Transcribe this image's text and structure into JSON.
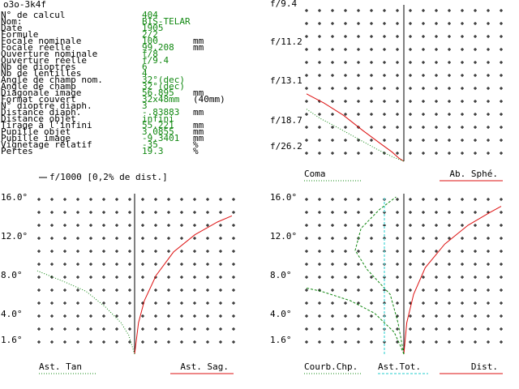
{
  "title": "o3o-3k4f",
  "params": [
    {
      "label": "N° de calcul",
      "value": "404",
      "unit": ""
    },
    {
      "label": "Nom:",
      "value": "BIS-TELAR",
      "unit": ""
    },
    {
      "label": "Date",
      "value": "1905",
      "unit": ""
    },
    {
      "label": "Formule",
      "value": "2/2",
      "unit": ""
    },
    {
      "label": "Focale nominale",
      "value": "100",
      "unit": "mm"
    },
    {
      "label": "Focale réelle",
      "value": "99.208",
      "unit": "mm"
    },
    {
      "label": "Ouverture nominale",
      "value": "f/8",
      "unit": ""
    },
    {
      "label": "Ouverture réelle",
      "value": "f/9.4",
      "unit": ""
    },
    {
      "label": "Nb de dioptres",
      "value": "6",
      "unit": ""
    },
    {
      "label": "Nb de lentilles",
      "value": "4",
      "unit": ""
    },
    {
      "label": "Angle de champ nom.",
      "value": "32°(dec)",
      "unit": ""
    },
    {
      "label": "Angle de champ",
      "value": "32°(dec)",
      "unit": ""
    },
    {
      "label": "Diagonale image",
      "value": "56.895",
      "unit": "mm"
    },
    {
      "label": "Format couvert",
      "value": "32x48mm",
      "unit": "(40mm)"
    },
    {
      "label": "N° dioptre diaph.",
      "value": "3",
      "unit": ""
    },
    {
      "label": "Distance diaph.",
      "value": "-.83883",
      "unit": "mm"
    },
    {
      "label": "Distance objet",
      "value": "infini",
      "unit": ""
    },
    {
      "label": "Tirage à l'infini",
      "value": "55.221",
      "unit": "mm"
    },
    {
      "label": "Pupille objet",
      "value": "3.0855",
      "unit": "mm"
    },
    {
      "label": "Pupille image",
      "value": "-9.3401",
      "unit": "mm"
    },
    {
      "label": "Vignetage relatif",
      "value": "-35",
      "unit": "%"
    },
    {
      "label": "Pertes",
      "value": "19.3",
      "unit": "%"
    }
  ],
  "colors": {
    "grid": "#000000",
    "red": "#dd1111",
    "green": "#118811",
    "cyan": "#22cccc",
    "text": "#000000"
  },
  "chart_data": [
    {
      "id": "spherical",
      "type": "line",
      "yticks": [
        "f/9.4",
        "f/11.2",
        "f/13.1",
        "f/18.7",
        "f/26.2"
      ],
      "labels": {
        "left": "Coma",
        "right": "Ab. Sphé."
      },
      "series": [
        {
          "name": "Ab. Sphé.",
          "color": "red",
          "style": "solid",
          "points": [
            [
              -1.0,
              0.44
            ],
            [
              -0.82,
              0.38
            ],
            [
              -0.62,
              0.3
            ],
            [
              -0.42,
              0.2
            ],
            [
              -0.25,
              0.12
            ],
            [
              -0.12,
              0.06
            ],
            [
              -0.05,
              0.02
            ],
            [
              0,
              0
            ]
          ]
        },
        {
          "name": "Coma",
          "color": "green",
          "style": "dotted",
          "points": [
            [
              -1.0,
              0.34
            ],
            [
              -0.86,
              0.28
            ],
            [
              -0.68,
              0.22
            ],
            [
              -0.48,
              0.15
            ],
            [
              -0.28,
              0.08
            ],
            [
              -0.12,
              0.03
            ],
            [
              0,
              0
            ]
          ]
        }
      ]
    },
    {
      "id": "astigmatism",
      "type": "line",
      "header": "f/1000 [0,2% de dist.]",
      "yticks": [
        "16.0°",
        "12.0°",
        "8.0°",
        "4.0°",
        "1.6°"
      ],
      "labels": {
        "left": "Ast. Tan",
        "right": "Ast. Sag."
      },
      "series": [
        {
          "name": "Ast. Sag.",
          "color": "red",
          "style": "solid",
          "points": [
            [
              0,
              0
            ],
            [
              0.04,
              0.2
            ],
            [
              0.1,
              0.34
            ],
            [
              0.22,
              0.5
            ],
            [
              0.4,
              0.65
            ],
            [
              0.62,
              0.76
            ],
            [
              0.85,
              0.84
            ],
            [
              1.0,
              0.88
            ]
          ]
        },
        {
          "name": "Ast. Tan",
          "color": "green",
          "style": "dotted",
          "points": [
            [
              0,
              0
            ],
            [
              -0.06,
              0.12
            ],
            [
              -0.14,
              0.2
            ],
            [
              -0.3,
              0.3
            ],
            [
              -0.5,
              0.4
            ],
            [
              -0.72,
              0.46
            ],
            [
              -1.0,
              0.53
            ]
          ]
        }
      ]
    },
    {
      "id": "field",
      "type": "line",
      "yticks": [
        "16.0°",
        "12.0°",
        "8.0°",
        "4.0°",
        "1.6°"
      ],
      "labels": {
        "left": "Courb.Chp.",
        "mid": "Ast.Tot.",
        "right": "Dist."
      },
      "series": [
        {
          "name": "Dist.",
          "color": "red",
          "style": "solid",
          "points": [
            [
              0,
              0
            ],
            [
              0.03,
              0.2
            ],
            [
              0.1,
              0.38
            ],
            [
              0.22,
              0.55
            ],
            [
              0.42,
              0.7
            ],
            [
              0.66,
              0.82
            ],
            [
              0.88,
              0.9
            ],
            [
              1.0,
              0.94
            ]
          ]
        },
        {
          "name": "Courb.Chp.",
          "color": "green",
          "style": "dashed",
          "points": [
            [
              0,
              0
            ],
            [
              -0.04,
              0.06
            ],
            [
              -0.1,
              0.14
            ],
            [
              -0.3,
              0.26
            ],
            [
              -0.55,
              0.34
            ],
            [
              -0.85,
              0.4
            ],
            [
              -1.0,
              0.42
            ]
          ]
        },
        {
          "name": "Courb.Chp. 2",
          "color": "green",
          "style": "dashed",
          "points": [
            [
              0,
              0
            ],
            [
              -0.06,
              0.2
            ],
            [
              -0.14,
              0.38
            ],
            [
              -0.38,
              0.54
            ],
            [
              -0.5,
              0.66
            ],
            [
              -0.44,
              0.8
            ],
            [
              -0.25,
              0.92
            ],
            [
              -0.08,
              1.0
            ]
          ]
        },
        {
          "name": "Ast.Tot.",
          "color": "cyan",
          "style": "dashed",
          "points": [
            [
              -0.2,
              0
            ],
            [
              -0.2,
              1.0
            ]
          ]
        }
      ]
    }
  ]
}
